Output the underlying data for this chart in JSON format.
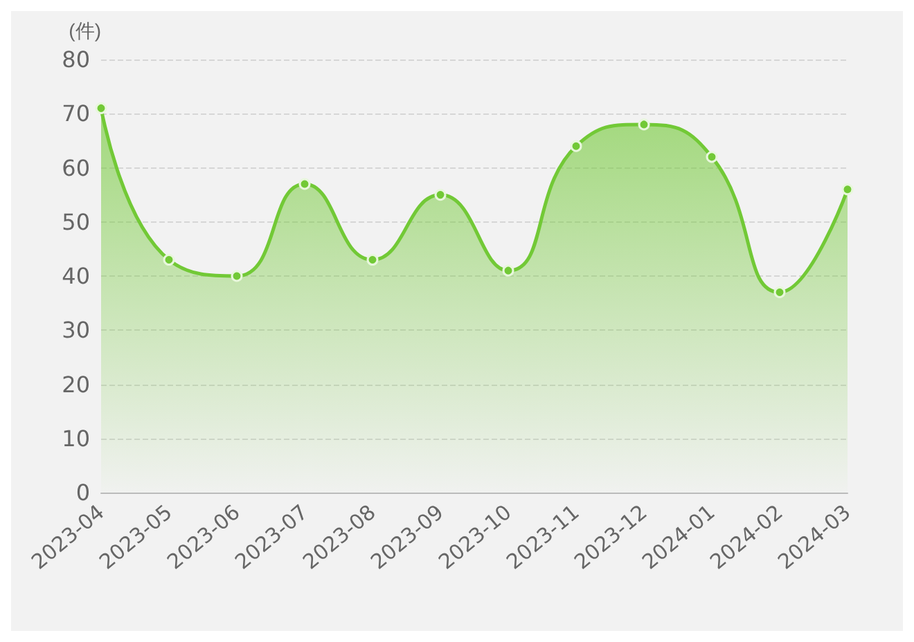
{
  "chart_data": {
    "type": "area",
    "ylabel": "(件)",
    "categories": [
      "2023-04",
      "2023-05",
      "2023-06",
      "2023-07",
      "2023-08",
      "2023-09",
      "2023-10",
      "2023-11",
      "2023-12",
      "2024-01",
      "2024-02",
      "2024-03"
    ],
    "series": [
      {
        "color": "#72c936",
        "values": [
          71,
          43,
          40,
          57,
          43,
          55,
          41,
          64,
          68,
          62,
          37,
          56
        ]
      }
    ],
    "ylim": [
      0,
      80
    ],
    "yticks": [
      0,
      10,
      20,
      30,
      40,
      50,
      60,
      70,
      80
    ],
    "grid": "y",
    "marker": "circle",
    "line_style": "solid"
  }
}
